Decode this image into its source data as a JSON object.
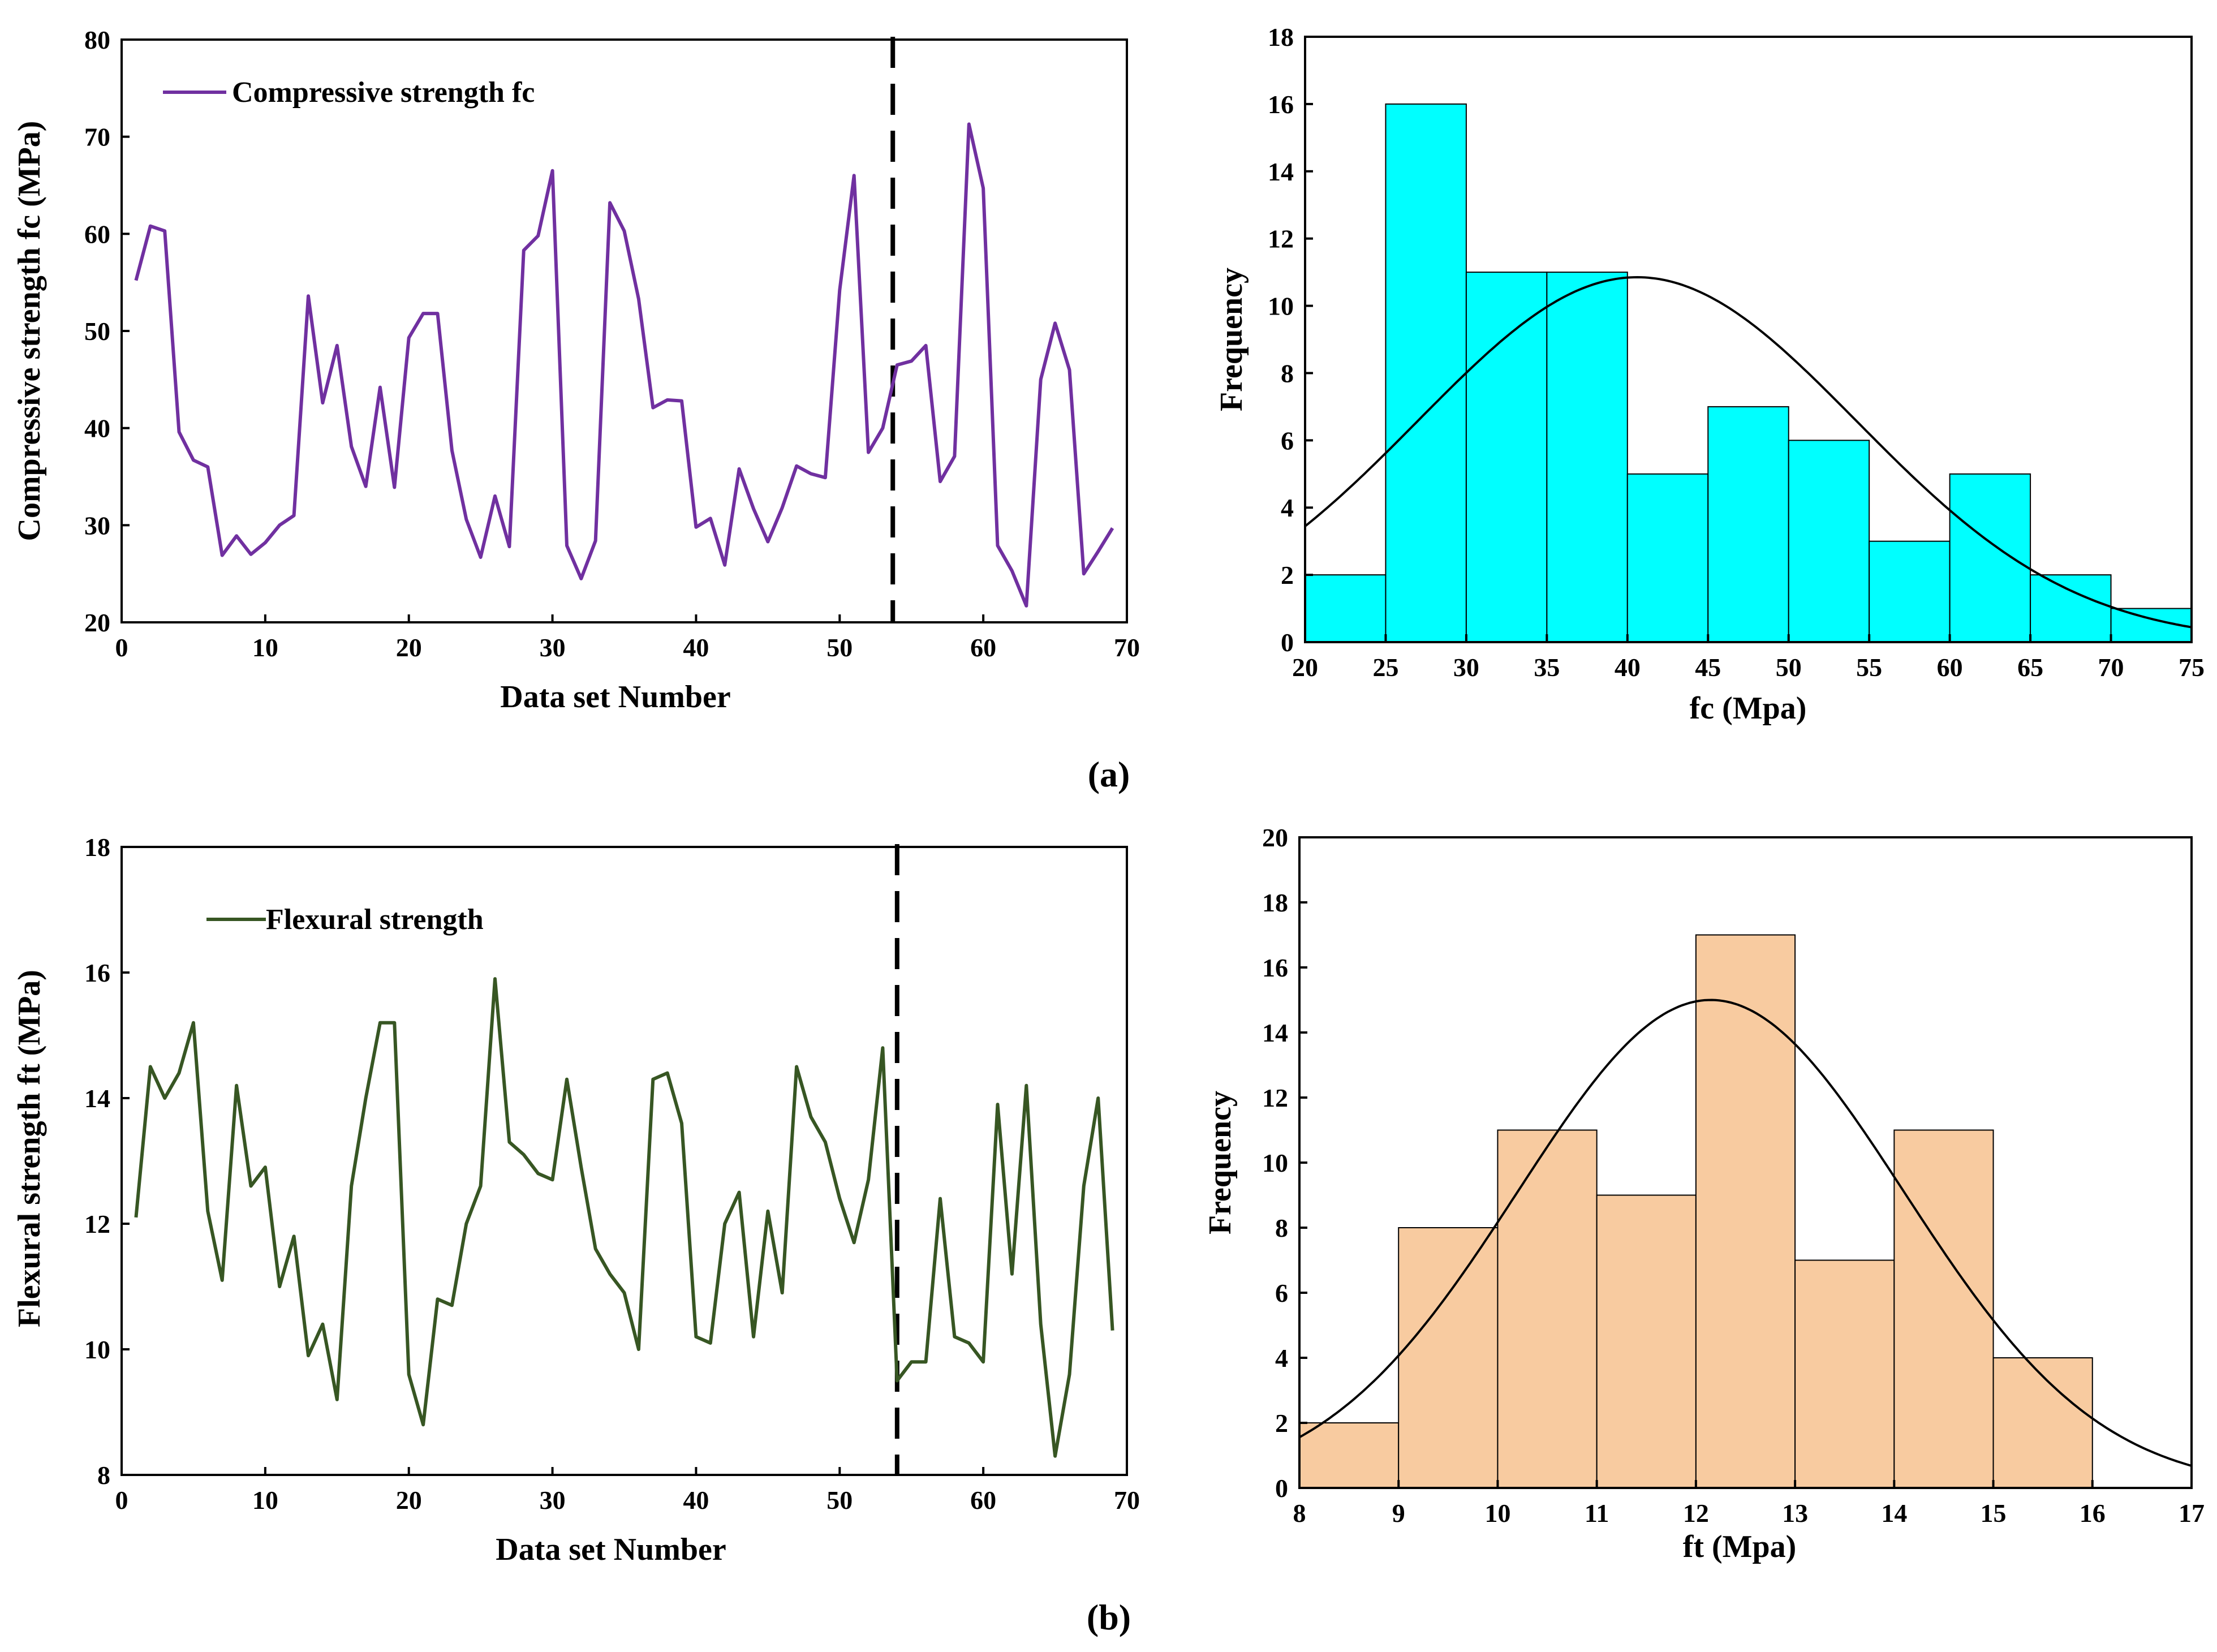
{
  "chart_data": [
    {
      "type": "line",
      "xlabel": "Data set Number",
      "ylabel": "Compressive strength fc (MPa)",
      "xlim": [
        0,
        70
      ],
      "ylim": [
        20,
        80
      ],
      "xticks": [
        0,
        10,
        20,
        30,
        40,
        50,
        60,
        70
      ],
      "yticks": [
        20,
        30,
        40,
        50,
        60,
        70,
        80
      ],
      "split_at": 53.7,
      "color": "#7030a0",
      "series": [
        {
          "name": "Compressive strength fc",
          "x": [
            1,
            2,
            3,
            4,
            5,
            6,
            7,
            8,
            9,
            10,
            11,
            12,
            13,
            14,
            15,
            16,
            17,
            18,
            19,
            20,
            21,
            22,
            23,
            24,
            25,
            26,
            27,
            28,
            29,
            30,
            31,
            32,
            33,
            34,
            35,
            36,
            37,
            38,
            39,
            40,
            41,
            42,
            43,
            44,
            45,
            46,
            47,
            48,
            49,
            50,
            51,
            52,
            53,
            54,
            55,
            56,
            57,
            58,
            59,
            60,
            61,
            62,
            63,
            64,
            65,
            66,
            67,
            68,
            69
          ],
          "values": [
            55.2,
            60.8,
            60.3,
            39.6,
            36.7,
            36.0,
            26.9,
            28.9,
            27.0,
            28.2,
            30.0,
            31.0,
            53.6,
            42.6,
            48.5,
            38.1,
            34.0,
            44.2,
            33.9,
            49.3,
            51.8,
            51.8,
            37.7,
            30.6,
            26.7,
            33.0,
            27.8,
            58.3,
            59.8,
            66.5,
            27.9,
            24.5,
            28.4,
            63.2,
            60.3,
            53.3,
            42.1,
            42.9,
            42.8,
            29.8,
            30.7,
            25.9,
            35.8,
            31.7,
            28.3,
            31.8,
            36.1,
            35.3,
            34.9,
            54.2,
            66.0,
            37.5,
            40.0,
            46.5,
            46.9,
            48.5,
            34.5,
            37.1,
            71.3,
            64.7,
            27.9,
            25.3,
            21.7,
            45.0,
            50.8,
            46.0,
            25.0,
            27.3,
            29.7
          ]
        }
      ]
    },
    {
      "type": "bar",
      "xlabel": "fc (Mpa)",
      "ylabel": "Frequency",
      "xlim": [
        20,
        75
      ],
      "ylim": [
        0,
        18
      ],
      "xticks": [
        20,
        25,
        30,
        35,
        40,
        45,
        50,
        55,
        60,
        65,
        70,
        75
      ],
      "yticks": [
        0,
        2,
        4,
        6,
        8,
        10,
        12,
        14,
        16,
        18
      ],
      "bin_edges": [
        20,
        25,
        30,
        35,
        40,
        45,
        50,
        55,
        60,
        65,
        70,
        75
      ],
      "values": [
        2,
        16,
        11,
        11,
        5,
        7,
        6,
        3,
        5,
        2,
        1
      ],
      "bar_color": "#00ffff",
      "normal_fit": {
        "peak": 10.85,
        "mean": 40.6,
        "sd": 13.6
      }
    },
    {
      "type": "line",
      "xlabel": "Data set Number",
      "ylabel": "Flexural strength ft (MPa)",
      "xlim": [
        0,
        70
      ],
      "ylim": [
        8,
        18
      ],
      "xticks": [
        0,
        10,
        20,
        30,
        40,
        50,
        60,
        70
      ],
      "yticks": [
        8,
        10,
        12,
        14,
        16,
        18
      ],
      "split_at": 54,
      "color": "#375623",
      "series": [
        {
          "name": "Flexural strength",
          "x": [
            1,
            2,
            3,
            4,
            5,
            6,
            7,
            8,
            9,
            10,
            11,
            12,
            13,
            14,
            15,
            16,
            17,
            18,
            19,
            20,
            21,
            22,
            23,
            24,
            25,
            26,
            27,
            28,
            29,
            30,
            31,
            32,
            33,
            34,
            35,
            36,
            37,
            38,
            39,
            40,
            41,
            42,
            43,
            44,
            45,
            46,
            47,
            48,
            49,
            50,
            51,
            52,
            53,
            54,
            55,
            56,
            57,
            58,
            59,
            60,
            61,
            62,
            63,
            64,
            65,
            66,
            67,
            68,
            69
          ],
          "values": [
            12.1,
            14.5,
            14.0,
            14.4,
            15.2,
            12.2,
            11.1,
            14.2,
            12.6,
            12.9,
            11.0,
            11.8,
            9.9,
            10.4,
            9.2,
            12.6,
            14.0,
            15.2,
            15.2,
            9.6,
            8.8,
            10.8,
            10.7,
            12.0,
            12.6,
            15.9,
            13.3,
            13.1,
            12.8,
            12.7,
            14.3,
            12.9,
            11.6,
            11.2,
            10.9,
            10.0,
            14.3,
            14.4,
            13.6,
            10.2,
            10.1,
            12.0,
            12.5,
            10.2,
            12.2,
            10.9,
            14.5,
            13.7,
            13.3,
            12.4,
            11.7,
            12.7,
            14.8,
            9.5,
            9.8,
            9.8,
            12.4,
            10.2,
            10.1,
            9.8,
            13.9,
            11.2,
            14.2,
            10.4,
            8.3,
            9.6,
            12.6,
            14.0,
            10.3
          ]
        }
      ]
    },
    {
      "type": "bar",
      "xlabel": "ft  (Mpa)",
      "ylabel": "Frequency",
      "xlim": [
        8,
        17
      ],
      "ylim": [
        0,
        20
      ],
      "xticks": [
        8,
        9,
        10,
        11,
        12,
        13,
        14,
        15,
        16,
        17
      ],
      "yticks": [
        0,
        2,
        4,
        6,
        8,
        10,
        12,
        14,
        16,
        18,
        20
      ],
      "bin_edges": [
        8,
        9,
        10,
        11,
        12,
        13,
        14,
        15,
        16
      ],
      "values": [
        2,
        8,
        11,
        9,
        17,
        7,
        11,
        4
      ],
      "bar_color": "#f8cba0",
      "normal_fit": {
        "peak": 15.0,
        "mean": 12.15,
        "sd": 1.95
      }
    }
  ],
  "panel_labels": [
    "(a)",
    "(b)"
  ]
}
